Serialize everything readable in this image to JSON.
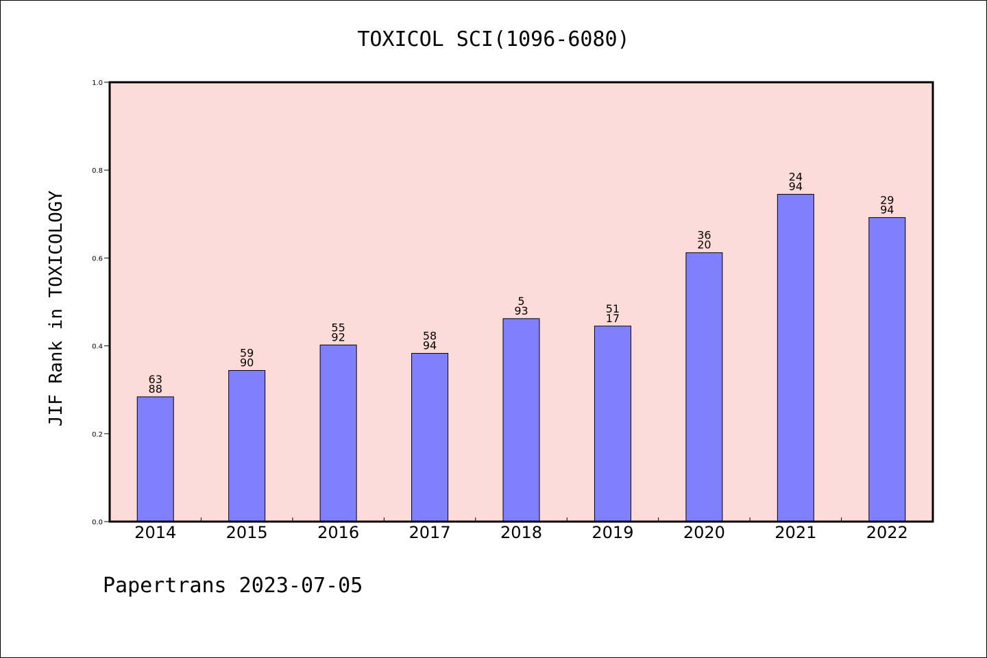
{
  "chart_data": {
    "type": "bar",
    "title": "TOXICOL SCI(1096-6080)",
    "xlabel": "",
    "ylabel": "JIF Rank in TOXICOLOGY",
    "ylim": [
      0,
      1.0
    ],
    "yticks": [
      "0.0",
      "0.2",
      "0.4",
      "0.6",
      "0.8",
      "1.0"
    ],
    "ytick_values": [
      0.0,
      0.2,
      0.4,
      0.6,
      0.8,
      1.0
    ],
    "grid": false,
    "categories": [
      "2014",
      "2015",
      "2016",
      "2017",
      "2018",
      "2019",
      "2020",
      "2021",
      "2022"
    ],
    "values": [
      0.284,
      0.344,
      0.402,
      0.383,
      0.462,
      0.445,
      0.612,
      0.745,
      0.692
    ],
    "labels_top": [
      "63",
      "59",
      "55",
      "58",
      "5",
      "51",
      "36",
      "24",
      "29"
    ],
    "labels_bottom": [
      "88",
      "90",
      "92",
      "94",
      "93",
      "17",
      "20",
      "94",
      "94"
    ],
    "colors": {
      "plot_background": "#fddbd8",
      "bar_fill": "#8080ff",
      "bar_stroke": "#000000"
    }
  },
  "footer": "Papertrans 2023-07-05"
}
